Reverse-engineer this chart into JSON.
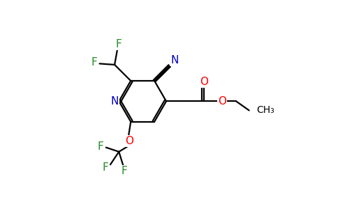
{
  "bg_color": "#ffffff",
  "figsize": [
    4.84,
    3.0
  ],
  "dpi": 100,
  "colors": {
    "N": "#0000cd",
    "O": "#ff0000",
    "F": "#228B22",
    "C": "#000000",
    "bond": "#000000"
  }
}
